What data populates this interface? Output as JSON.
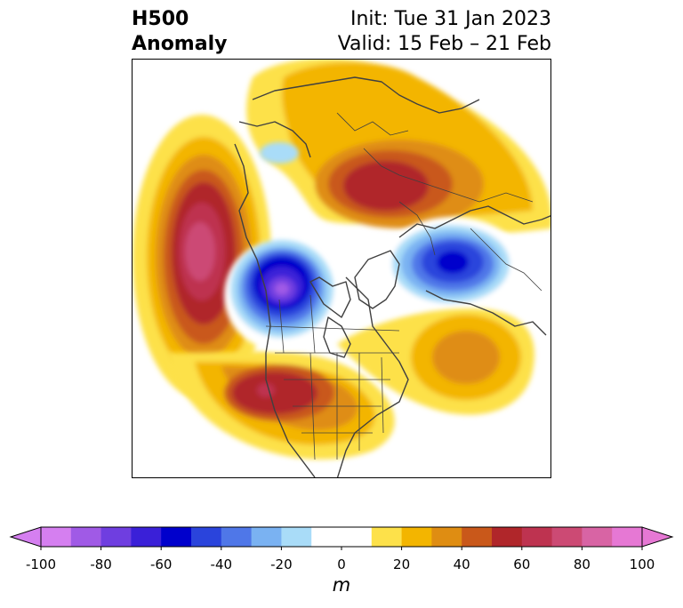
{
  "title": {
    "left_line1": "H500",
    "left_line2": "Anomaly",
    "right_line1": "Init: Tue 31 Jan 2023",
    "right_line2": "Valid: 15 Feb – 21 Feb"
  },
  "colorbar": {
    "unit": "m",
    "ticks": [
      "-100",
      "-80",
      "-60",
      "-40",
      "-20",
      "0",
      "20",
      "40",
      "60",
      "80",
      "100"
    ],
    "levels": [
      -100,
      -90,
      -80,
      -70,
      -60,
      -50,
      -40,
      -30,
      -20,
      -10,
      10,
      20,
      30,
      40,
      50,
      60,
      70,
      80,
      90,
      100
    ],
    "colors": [
      "#d57ff0",
      "#a05ae6",
      "#6f3ee0",
      "#3a20d8",
      "#0000cc",
      "#2a44dc",
      "#4f77e8",
      "#7ab2f2",
      "#a9dcf8",
      "#ffffff",
      "#fde14a",
      "#f3b500",
      "#df8d12",
      "#c9581a",
      "#b0262a",
      "#be3350",
      "#cc4a74",
      "#d864a4",
      "#e678d4"
    ],
    "under_color": "#d57ff0",
    "over_color": "#e678d4"
  },
  "map": {
    "projection": "polar-stereographic-north",
    "features": [
      "coastlines",
      "country-borders",
      "state-borders"
    ],
    "anomaly_centers": [
      {
        "region": "north-pacific-west",
        "value_m": 75
      },
      {
        "region": "western-canada",
        "value_m": -85
      },
      {
        "region": "southwest-united-states",
        "value_m": 65
      },
      {
        "region": "northern-russia-siberia",
        "value_m": 60
      },
      {
        "region": "eurasia-urals",
        "value_m": -60
      },
      {
        "region": "north-atlantic",
        "value_m": 35
      },
      {
        "region": "greenland-arctic",
        "value_m": 25
      }
    ]
  }
}
